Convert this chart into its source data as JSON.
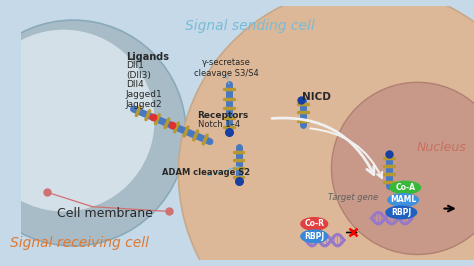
{
  "bg_color": "#c5d9e8",
  "sending_cell_color": "#c0cfd8",
  "sending_cell_inner": "#d4e0e8",
  "receiving_cell_color": "#ddb898",
  "receiving_cell_edge": "#c8a888",
  "nucleus_color": "#c89888",
  "nucleus_edge": "#b08070",
  "title_sending": "Signal sending cell",
  "title_receiving": "Signal receiving cell",
  "title_sending_color": "#78bcd8",
  "title_receiving_color": "#e07830",
  "nucleus_label": "Nucleus",
  "nucleus_label_color": "#c87060",
  "ligands_bold": "Ligands",
  "ligands_list": [
    "Dll1",
    "(Dll3)",
    "Dll4",
    "Jagged1",
    "Jagged2"
  ],
  "receptors_bold": "Receptors",
  "receptors_sub": "Notch 1–4",
  "adam_label": "ADAM cleavage S2",
  "gamma_label": "γ-secretase\ncleavage S3/S4",
  "nicd_label": "NICD",
  "target_gene_label": "Target gene",
  "cell_membrane_label": "Cell membrane",
  "coa_label": "Co-A",
  "maml_label": "MAML",
  "rbpj_label": "RBPJ",
  "cor_label": "Co-R",
  "coa_color": "#38b838",
  "maml_color": "#4090e0",
  "rbpj_active_color": "#2060c0",
  "cor_color": "#e04040",
  "rbpj_inactive_color": "#3888d8",
  "dna_color": "#9878c8",
  "receptor_blue": "#4878c0",
  "receptor_gold": "#b89830",
  "receptor_red": "#e03030",
  "receptor_dark_blue": "#1840a0",
  "arrow_color": "#f0f0f0",
  "dashed_color": "#70b8d8",
  "membrane_line_color": "#d07070",
  "text_dark": "#282828"
}
